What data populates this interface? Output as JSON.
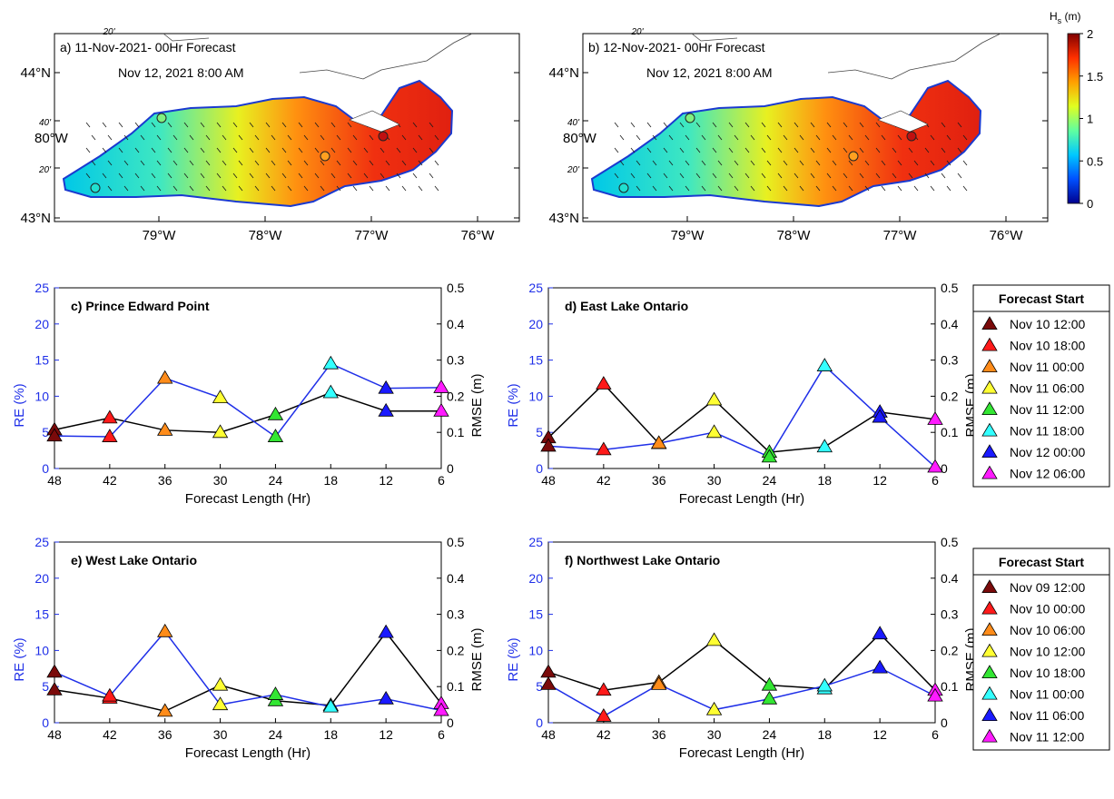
{
  "chart_data": [
    {
      "type": "heatmap",
      "panel_label": "a) 11-Nov-2021- 00Hr Forecast",
      "subtitle": "Nov 12, 2021 8:00 AM",
      "lat_ticks": [
        "44°N",
        "40'",
        "20'",
        "43°N"
      ],
      "lat_top_tick": "20'",
      "lon_tick_west": "80°W",
      "lon_ticks": [
        "79°W",
        "78°W",
        "77°W",
        "76°W"
      ],
      "colors": {
        "lake_low": "#00c8e8",
        "lake_high": "#e02010"
      }
    },
    {
      "type": "heatmap",
      "panel_label": "b) 12-Nov-2021- 00Hr Forecast",
      "subtitle": "Nov 12, 2021 8:00 AM",
      "lat_ticks": [
        "44°N",
        "40'",
        "20'",
        "43°N"
      ],
      "lat_top_tick": "20'",
      "lon_tick_west": "80°W",
      "lon_ticks": [
        "79°W",
        "78°W",
        "77°W",
        "76°W"
      ],
      "colors": {
        "lake_low": "#00c8e8",
        "lake_high": "#e02010"
      }
    },
    {
      "type": "line",
      "title": "c) Prince Edward Point",
      "x": [
        48,
        42,
        36,
        30,
        24,
        18,
        12,
        6
      ],
      "xlabel": "Forecast Length (Hr)",
      "ylabel": "RE (%)",
      "ylabel_right": "RMSE (m)",
      "ylim": [
        0,
        25
      ],
      "ylim_right": [
        0,
        0.5
      ],
      "yticks": [
        0,
        5,
        10,
        15,
        20,
        25
      ],
      "yticks_right": [
        "0",
        "0.1",
        "0.2",
        "0.3",
        "0.4",
        "0.5"
      ],
      "series": [
        {
          "axis": "left",
          "color": "#1f2fe8",
          "values": [
            4.5,
            4.4,
            12.5,
            9.8,
            4.4,
            14.5,
            11.1,
            11.2
          ]
        },
        {
          "axis": "right",
          "color": "#000000",
          "values": [
            0.107,
            0.14,
            0.106,
            0.1,
            0.149,
            0.21,
            0.159,
            0.159
          ]
        }
      ]
    },
    {
      "type": "line",
      "title": "d) East Lake Ontario",
      "x": [
        48,
        42,
        36,
        30,
        24,
        18,
        12,
        6
      ],
      "xlabel": "Forecast Length (Hr)",
      "ylabel": "RE (%)",
      "ylabel_right": "RMSE (m)",
      "ylim": [
        0,
        25
      ],
      "ylim_right": [
        0,
        0.5
      ],
      "yticks": [
        0,
        5,
        10,
        15,
        20,
        25
      ],
      "yticks_right": [
        "0",
        "0.1",
        "0.2",
        "0.3",
        "0.4",
        "0.5"
      ],
      "series": [
        {
          "axis": "left",
          "color": "#1f2fe8",
          "values": [
            3.1,
            2.6,
            3.5,
            5.0,
            1.6,
            14.2,
            7.1,
            0.2
          ]
        },
        {
          "axis": "right",
          "color": "#000000",
          "values": [
            0.085,
            0.234,
            0.069,
            0.19,
            0.045,
            0.06,
            0.156,
            0.136
          ]
        }
      ]
    },
    {
      "type": "line",
      "title": "e) West Lake Ontario",
      "x": [
        48,
        42,
        36,
        30,
        24,
        18,
        12,
        6
      ],
      "xlabel": "Forecast Length (Hr)",
      "ylabel": "RE (%)",
      "ylabel_right": "RMSE (m)",
      "ylim": [
        0,
        25
      ],
      "ylim_right": [
        0,
        0.5
      ],
      "yticks": [
        0,
        5,
        10,
        15,
        20,
        25
      ],
      "yticks_right": [
        "0",
        "0.1",
        "0.2",
        "0.3",
        "0.4",
        "0.5"
      ],
      "series": [
        {
          "axis": "left",
          "color": "#1f2fe8",
          "values": [
            7.0,
            3.7,
            12.6,
            2.5,
            3.9,
            2.2,
            3.3,
            1.7
          ]
        },
        {
          "axis": "right",
          "color": "#000000",
          "values": [
            0.091,
            0.068,
            0.032,
            0.104,
            0.061,
            0.048,
            0.25,
            0.053
          ]
        }
      ]
    },
    {
      "type": "line",
      "title": "f) Northwest Lake Ontario",
      "x": [
        48,
        42,
        36,
        30,
        24,
        18,
        12,
        6
      ],
      "xlabel": "Forecast Length (Hr)",
      "ylabel": "RE (%)",
      "ylabel_right": "RMSE (m)",
      "ylim": [
        0,
        25
      ],
      "ylim_right": [
        0,
        0.5
      ],
      "yticks": [
        0,
        5,
        10,
        15,
        20,
        25
      ],
      "yticks_right": [
        "0",
        "0.1",
        "0.2",
        "0.3",
        "0.4",
        "0.5"
      ],
      "series": [
        {
          "axis": "left",
          "color": "#1f2fe8",
          "values": [
            5.3,
            0.9,
            5.3,
            1.8,
            3.3,
            5.1,
            7.6,
            3.7
          ]
        },
        {
          "axis": "right",
          "color": "#000000",
          "values": [
            0.14,
            0.09,
            0.112,
            0.228,
            0.104,
            0.094,
            0.246,
            0.09
          ]
        }
      ]
    }
  ],
  "colorbar": {
    "title": "H",
    "title_sub": "s",
    "unit": " (m)",
    "ticks": [
      "0",
      "0.5",
      "1",
      "1.5",
      "2"
    ],
    "stops": [
      "#00008f",
      "#0050ff",
      "#00c8ff",
      "#60ffa0",
      "#e0ff20",
      "#ffa000",
      "#ff3000",
      "#800000"
    ]
  },
  "legend_top": {
    "title": "Forecast Start",
    "entries": [
      "Nov 10 12:00",
      "Nov 10 18:00",
      "Nov 11 00:00",
      "Nov 11 06:00",
      "Nov 11 12:00",
      "Nov 11 18:00",
      "Nov 12 00:00",
      "Nov 12 06:00"
    ]
  },
  "legend_bottom": {
    "title": "Forecast Start",
    "entries": [
      "Nov 09 12:00",
      "Nov 10 00:00",
      "Nov 10 06:00",
      "Nov 10 12:00",
      "Nov 10 18:00",
      "Nov 11 00:00",
      "Nov 11 06:00",
      "Nov 11 12:00"
    ]
  },
  "marker_colors": [
    "#7a0a0a",
    "#ff1a1a",
    "#ff8c1a",
    "#ffff33",
    "#33e633",
    "#33ffff",
    "#1a1aff",
    "#ff1aff"
  ]
}
